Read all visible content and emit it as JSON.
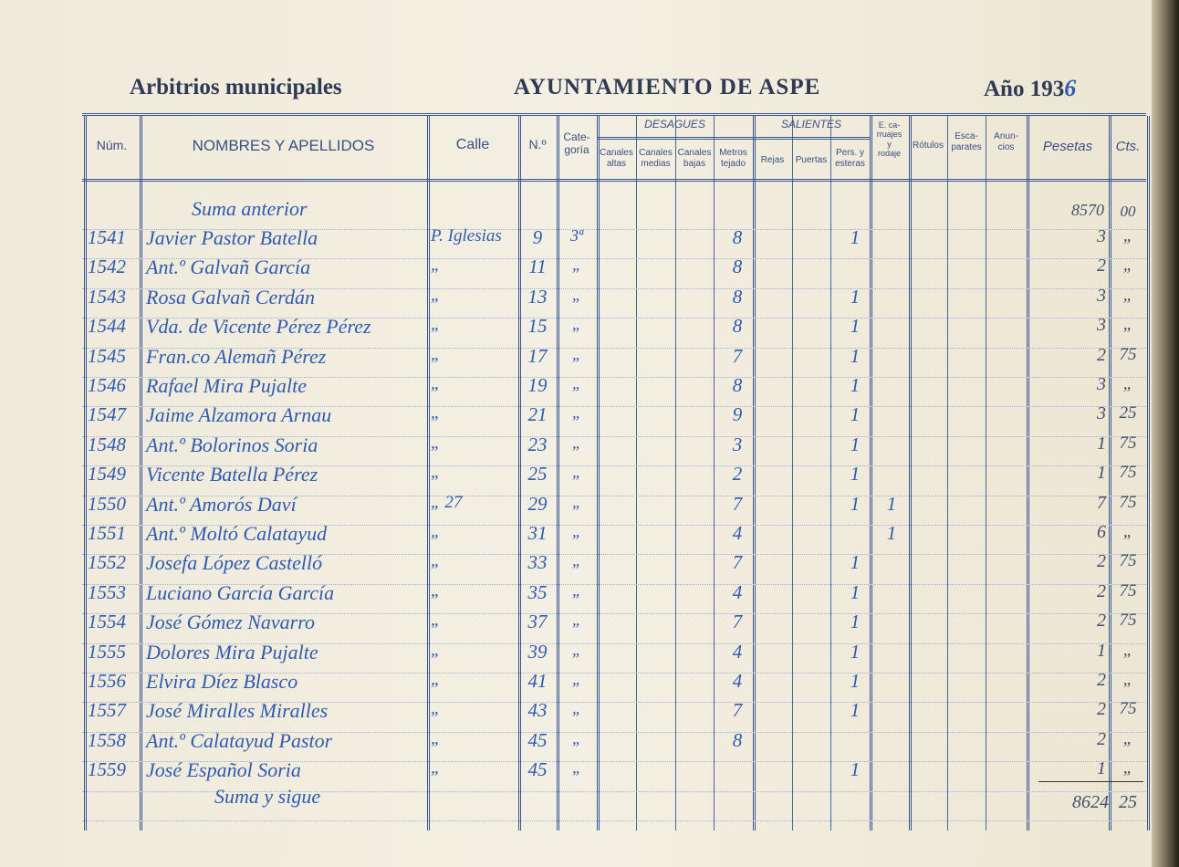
{
  "header": {
    "left": "Arbitrios municipales",
    "center": "AYUNTAMIENTO DE ASPE",
    "right_prefix": "Año 193",
    "right_year_digit": "6"
  },
  "columns": {
    "num": "Núm.",
    "nombres": "NOMBRES Y APELLIDOS",
    "calle": "Calle",
    "numero": "N.º",
    "categoria": "Cate-\ngoría",
    "desagues": "DESAGUES",
    "canales_altas": "Canales\naltas",
    "canales_medias": "Canales\nmedias",
    "canales_bajas": "Canales\nbajas",
    "metros": "Metros\ntejado",
    "salientes": "SALIENTES",
    "rejas": "Rejas",
    "puertas": "Puertas",
    "pers": "Pers. y\nesteras",
    "carruajes": "E. ca-\nrruajes\ny\nrodaje",
    "rotulos": "Rótulos",
    "escaparates": "Esca-\nparates",
    "anuncios": "Anun-\ncios",
    "pesetas": "Pesetas",
    "cts": "Cts."
  },
  "suma_anterior": {
    "label": "Suma anterior",
    "pesetas": "8570",
    "cts": "00"
  },
  "rows": [
    {
      "num": "1541",
      "name": "Javier Pastor Batella",
      "calle": "P. Iglesias",
      "numero": "9",
      "cat": "3ª",
      "metros": "8",
      "pers": "1",
      "carr": "",
      "pesetas": "3",
      "cts": "„"
    },
    {
      "num": "1542",
      "name": "Ant.º Galvañ García",
      "calle": "„",
      "numero": "11",
      "cat": "„",
      "metros": "8",
      "pers": "",
      "carr": "",
      "pesetas": "2",
      "cts": "„"
    },
    {
      "num": "1543",
      "name": "Rosa Galvañ Cerdán",
      "calle": "„",
      "numero": "13",
      "cat": "„",
      "metros": "8",
      "pers": "1",
      "carr": "",
      "pesetas": "3",
      "cts": "„"
    },
    {
      "num": "1544",
      "name": "Vda. de Vicente Pérez Pérez",
      "calle": "„",
      "numero": "15",
      "cat": "„",
      "metros": "8",
      "pers": "1",
      "carr": "",
      "pesetas": "3",
      "cts": "„"
    },
    {
      "num": "1545",
      "name": "Fran.co Alemañ Pérez",
      "calle": "„",
      "numero": "17",
      "cat": "„",
      "metros": "7",
      "pers": "1",
      "carr": "",
      "pesetas": "2",
      "cts": "75"
    },
    {
      "num": "1546",
      "name": "Rafael Mira Pujalte",
      "calle": "„",
      "numero": "19",
      "cat": "„",
      "metros": "8",
      "pers": "1",
      "carr": "",
      "pesetas": "3",
      "cts": "„"
    },
    {
      "num": "1547",
      "name": "Jaime Alzamora Arnau",
      "calle": "„",
      "numero": "21",
      "cat": "„",
      "metros": "9",
      "pers": "1",
      "carr": "",
      "pesetas": "3",
      "cts": "25"
    },
    {
      "num": "1548",
      "name": "Ant.º Bolorinos Soria",
      "calle": "„",
      "numero": "23",
      "cat": "„",
      "metros": "3",
      "pers": "1",
      "carr": "",
      "pesetas": "1",
      "cts": "75"
    },
    {
      "num": "1549",
      "name": "Vicente Batella Pérez",
      "calle": "„",
      "numero": "25",
      "cat": "„",
      "metros": "2",
      "pers": "1",
      "carr": "",
      "pesetas": "1",
      "cts": "75"
    },
    {
      "num": "1550",
      "name": "Ant.º Amorós Daví",
      "calle": "„ 27",
      "numero": "29",
      "cat": "„",
      "metros": "7",
      "pers": "1",
      "carr": "1",
      "pesetas": "7",
      "cts": "75"
    },
    {
      "num": "1551",
      "name": "Ant.º Moltó Calatayud",
      "calle": "„",
      "numero": "31",
      "cat": "„",
      "metros": "4",
      "pers": "",
      "carr": "1",
      "pesetas": "6",
      "cts": "„"
    },
    {
      "num": "1552",
      "name": "Josefa López Castelló",
      "calle": "„",
      "numero": "33",
      "cat": "„",
      "metros": "7",
      "pers": "1",
      "carr": "",
      "pesetas": "2",
      "cts": "75"
    },
    {
      "num": "1553",
      "name": "Luciano García García",
      "calle": "„",
      "numero": "35",
      "cat": "„",
      "metros": "4",
      "pers": "1",
      "carr": "",
      "pesetas": "2",
      "cts": "75"
    },
    {
      "num": "1554",
      "name": "José Gómez Navarro",
      "calle": "„",
      "numero": "37",
      "cat": "„",
      "metros": "7",
      "pers": "1",
      "carr": "",
      "pesetas": "2",
      "cts": "75"
    },
    {
      "num": "1555",
      "name": "Dolores Mira Pujalte",
      "calle": "„",
      "numero": "39",
      "cat": "„",
      "metros": "4",
      "pers": "1",
      "carr": "",
      "pesetas": "1",
      "cts": "„"
    },
    {
      "num": "1556",
      "name": "Elvira Díez Blasco",
      "calle": "„",
      "numero": "41",
      "cat": "„",
      "metros": "4",
      "pers": "1",
      "carr": "",
      "pesetas": "2",
      "cts": "„"
    },
    {
      "num": "1557",
      "name": "José Miralles Miralles",
      "calle": "„",
      "numero": "43",
      "cat": "„",
      "metros": "7",
      "pers": "1",
      "carr": "",
      "pesetas": "2",
      "cts": "75"
    },
    {
      "num": "1558",
      "name": "Ant.º Calatayud Pastor",
      "calle": "„",
      "numero": "45",
      "cat": "„",
      "metros": "8",
      "pers": "",
      "carr": "",
      "pesetas": "2",
      "cts": "„"
    },
    {
      "num": "1559",
      "name": "José Español Soria",
      "calle": "„",
      "numero": "45",
      "cat": "„",
      "metros": "",
      "pers": "1",
      "carr": "",
      "pesetas": "1",
      "cts": "„"
    }
  ],
  "suma_sigue": {
    "label": "Suma y sigue",
    "pesetas": "8624",
    "cts": "25"
  },
  "colors": {
    "paper": "#f1ede0",
    "ink": "#2f5bb0",
    "print": "#3a4f82"
  }
}
